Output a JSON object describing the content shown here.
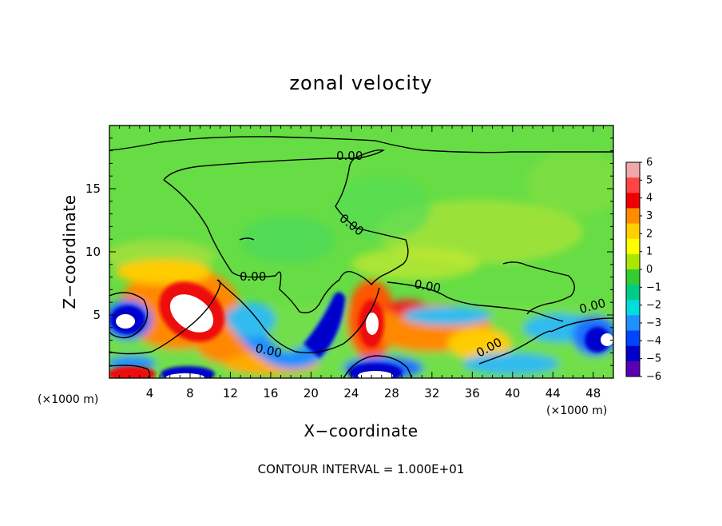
{
  "chart_data": {
    "type": "heatmap",
    "title": "zonal velocity",
    "xlabel": "X−coordinate",
    "ylabel": "Z−coordinate",
    "x_unit_left": "(×1000 m)",
    "x_unit_right": "(×1000 m)",
    "xlim": [
      0,
      50
    ],
    "ylim": [
      0,
      20
    ],
    "x_ticks": [
      4,
      8,
      12,
      16,
      20,
      24,
      28,
      32,
      36,
      40,
      44,
      48
    ],
    "y_ticks": [
      5,
      10,
      15
    ],
    "colorbar": {
      "labels": [
        "6",
        "5",
        "4",
        "3",
        "2",
        "1",
        "0",
        "−1",
        "−2",
        "−3",
        "−4",
        "−5",
        "−6"
      ],
      "range": [
        -6,
        6
      ],
      "colors": [
        "#f2a8a8",
        "#ff4444",
        "#ee0000",
        "#ff8c00",
        "#ffd000",
        "#ffff00",
        "#a8e800",
        "#33cc33",
        "#00cc88",
        "#00dddd",
        "#1e90ff",
        "#0044ff",
        "#0000cc",
        "#5a00b4"
      ]
    },
    "contour_labels": [
      "0.00",
      "0.00",
      "0.00",
      "0.00",
      "0.00",
      "0.00",
      "0.00"
    ],
    "footer": "CONTOUR INTERVAL = 1.000E+01",
    "grid": false,
    "legend_placement": "right"
  }
}
